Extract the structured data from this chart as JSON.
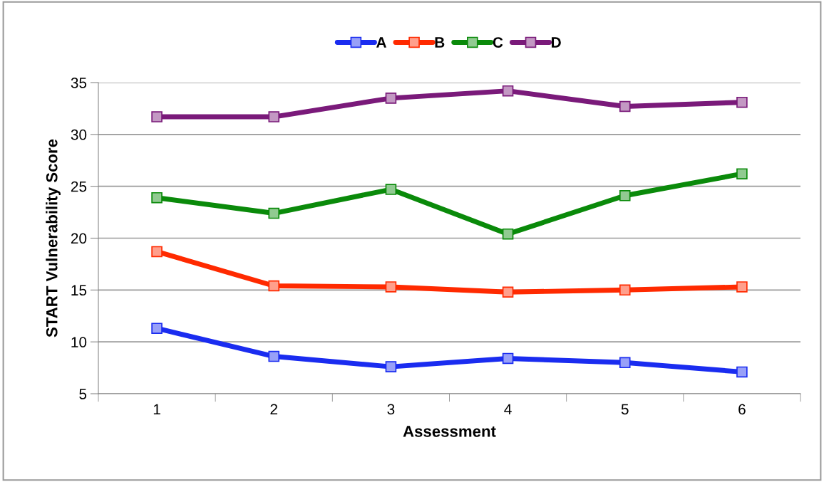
{
  "chart_data": {
    "type": "line",
    "xlabel": "Assessment",
    "ylabel": "START Vulnerability Score",
    "categories": [
      "1",
      "2",
      "3",
      "4",
      "5",
      "6"
    ],
    "series": [
      {
        "name": "A",
        "color": "#1a2cf0",
        "values": [
          11.3,
          8.6,
          7.6,
          8.4,
          8.0,
          7.1
        ]
      },
      {
        "name": "B",
        "color": "#ff2a00",
        "values": [
          18.7,
          15.4,
          15.3,
          14.8,
          15.0,
          15.3
        ]
      },
      {
        "name": "C",
        "color": "#0a8a0a",
        "values": [
          23.9,
          22.4,
          24.7,
          20.4,
          24.1,
          26.2
        ]
      },
      {
        "name": "D",
        "color": "#7a1a7a",
        "values": [
          31.7,
          31.7,
          33.5,
          34.2,
          32.7,
          33.1
        ]
      }
    ],
    "ylim": [
      5,
      35
    ],
    "yticks": [
      5,
      10,
      15,
      20,
      25,
      30,
      35
    ],
    "grid": "y",
    "legend": "top",
    "marker": "square",
    "line_style": "solid"
  }
}
